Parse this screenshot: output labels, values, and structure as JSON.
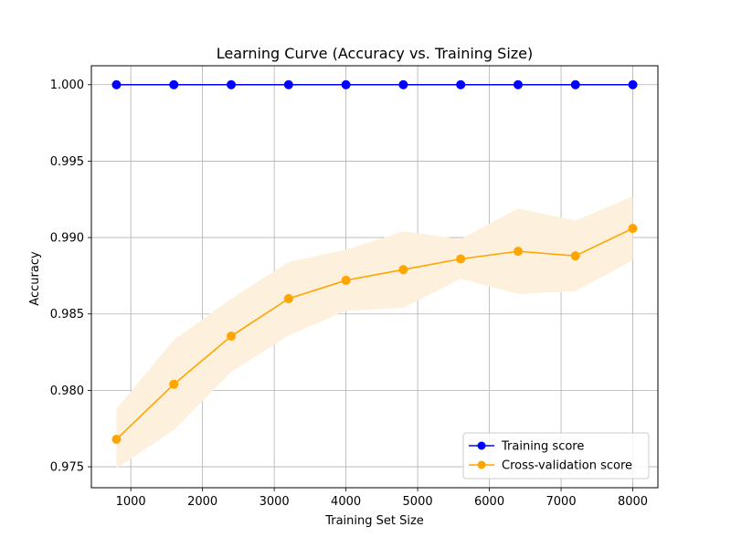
{
  "chart_data": {
    "type": "line",
    "title": "Learning Curve (Accuracy vs. Training Size)",
    "xlabel": "Training Set Size",
    "ylabel": "Accuracy",
    "xlim": [
      450,
      8350
    ],
    "ylim": [
      0.97363,
      1.00124
    ],
    "xticks": [
      1000,
      2000,
      3000,
      4000,
      5000,
      6000,
      7000,
      8000
    ],
    "xtick_labels": [
      "1000",
      "2000",
      "3000",
      "4000",
      "5000",
      "6000",
      "7000",
      "8000"
    ],
    "yticks": [
      0.975,
      0.98,
      0.985,
      0.99,
      0.995,
      1.0
    ],
    "ytick_labels": [
      "0.975",
      "0.980",
      "0.985",
      "0.990",
      "0.995",
      "1.000"
    ],
    "grid": true,
    "legend_position": "lower-right",
    "x": [
      800,
      1600,
      2400,
      3200,
      4000,
      4800,
      5600,
      6400,
      7200,
      8000
    ],
    "series": [
      {
        "name": "Training score",
        "color": "#0000ff",
        "marker": "circle",
        "values": [
          1.0,
          1.0,
          1.0,
          1.0,
          1.0,
          1.0,
          1.0,
          1.0,
          1.0,
          1.0
        ]
      },
      {
        "name": "Cross-validation score",
        "color": "#ffa500",
        "marker": "circle",
        "values": [
          0.9768,
          0.9804,
          0.98355,
          0.986,
          0.9872,
          0.9879,
          0.9886,
          0.9891,
          0.9888,
          0.9906
        ],
        "band_lower": [
          0.9749,
          0.9774,
          0.9812,
          0.9836,
          0.9852,
          0.9854,
          0.9873,
          0.9863,
          0.9865,
          0.9885
        ],
        "band_upper": [
          0.9788,
          0.9833,
          0.986,
          0.9884,
          0.9892,
          0.9904,
          0.9899,
          0.9919,
          0.9911,
          0.9927
        ],
        "band_color": "#fdf0dc"
      }
    ]
  }
}
